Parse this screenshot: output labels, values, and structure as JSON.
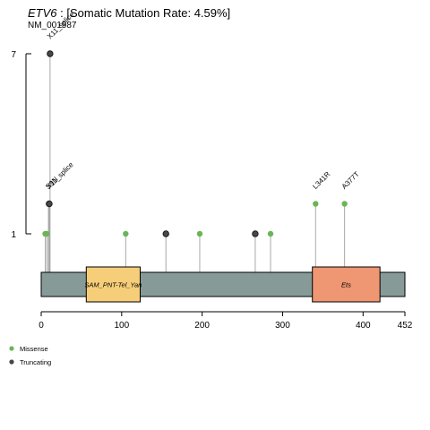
{
  "title": {
    "gene": "ETV6",
    "rest": " : [Somatic Mutation Rate: 4.59%]",
    "transcript": "NM_001987"
  },
  "colors": {
    "missense": "#6ab557",
    "truncating": "#474747",
    "backbone": "#869b98",
    "stem": "#a8a8a8"
  },
  "chart_data": {
    "type": "lollipop",
    "protein_length": 452,
    "x_ticks": [
      0,
      100,
      200,
      300,
      400,
      452
    ],
    "y_ticks": [
      1,
      7
    ],
    "xlim": [
      0,
      452
    ],
    "domains": [
      {
        "name": "SAM_PNT-Tel_Yan",
        "start": 56,
        "end": 123,
        "color": "#f6ce7a"
      },
      {
        "name": "Ets",
        "start": 337,
        "end": 421,
        "color": "#ef9673"
      }
    ],
    "mutations": [
      {
        "pos": 5,
        "count": 1,
        "type": "Missense",
        "label": ""
      },
      {
        "pos": 7,
        "count": 1,
        "type": "Missense",
        "label": ""
      },
      {
        "pos": 9,
        "count": 2,
        "type": "Missense",
        "label": "S9N"
      },
      {
        "pos": 10,
        "count": 2,
        "type": "Truncating",
        "label": "X11_splice"
      },
      {
        "pos": 11,
        "count": 7,
        "type": "Truncating",
        "label": "X11_splice"
      },
      {
        "pos": 105,
        "count": 1,
        "type": "Missense",
        "label": ""
      },
      {
        "pos": 155,
        "count": 1,
        "type": "Truncating",
        "label": ""
      },
      {
        "pos": 197,
        "count": 1,
        "type": "Missense",
        "label": ""
      },
      {
        "pos": 266,
        "count": 1,
        "type": "Truncating",
        "label": ""
      },
      {
        "pos": 285,
        "count": 1,
        "type": "Missense",
        "label": ""
      },
      {
        "pos": 341,
        "count": 2,
        "type": "Missense",
        "label": "L341R"
      },
      {
        "pos": 377,
        "count": 2,
        "type": "Missense",
        "label": "A377T"
      }
    ],
    "legend": [
      {
        "name": "Missense",
        "type": "Missense"
      },
      {
        "name": "Truncating",
        "type": "Truncating"
      }
    ]
  }
}
